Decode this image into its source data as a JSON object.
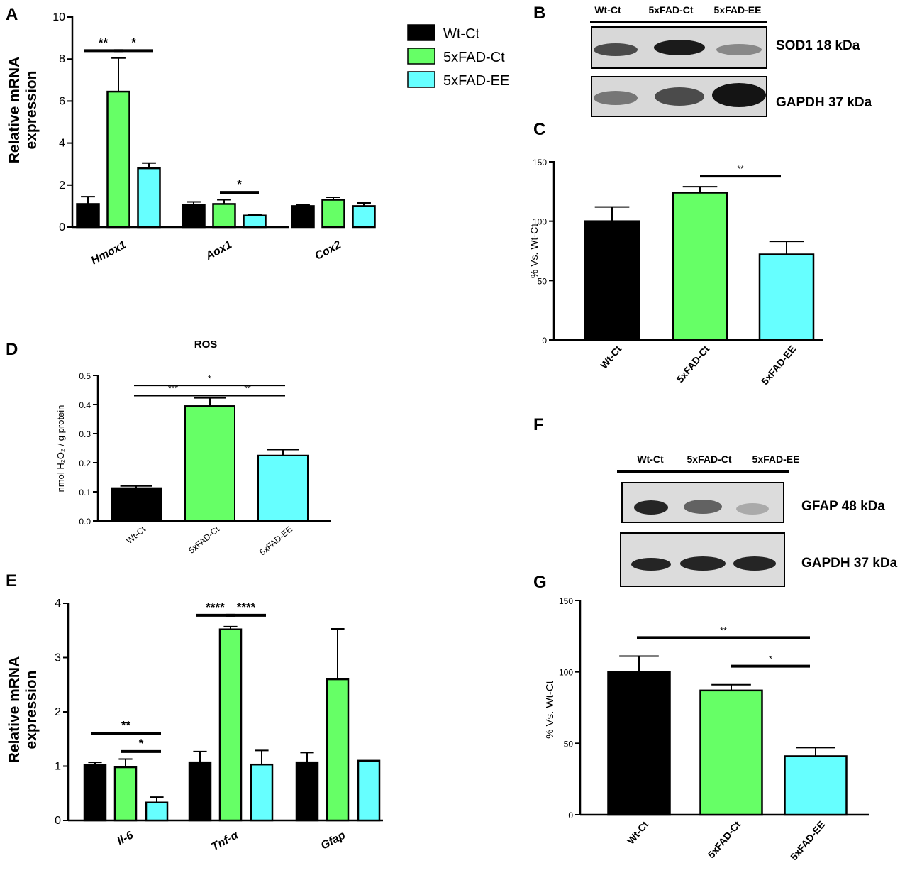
{
  "panels": {
    "A": "A",
    "B": "B",
    "C": "C",
    "D": "D",
    "E": "E",
    "F": "F",
    "G": "G"
  },
  "colors": {
    "wt_ct": "#000000",
    "fad_ct": "#66ff66",
    "fad_ee": "#66ffff"
  },
  "legend": {
    "items": [
      {
        "label": "Wt-Ct",
        "color": "#000000"
      },
      {
        "label": "5xFAD-Ct",
        "color": "#66ff66"
      },
      {
        "label": "5xFAD-EE",
        "color": "#66ffff"
      }
    ]
  },
  "blots": [
    {
      "lanes": [
        "Wt-Ct",
        "5xFAD-Ct",
        "5xFAD-EE"
      ],
      "rows": [
        "SOD1 18 kDa",
        "GAPDH 37 kDa"
      ]
    },
    {
      "lanes": [
        "Wt-Ct",
        "5xFAD-Ct",
        "5xFAD-EE"
      ],
      "rows": [
        "GFAP 48 kDa",
        "GAPDH 37 kDa"
      ]
    }
  ],
  "chart_data": [
    {
      "panel": "A",
      "type": "bar",
      "title": "",
      "ylabel": [
        "Relative mRNA",
        "expression"
      ],
      "ylim": [
        0,
        10
      ],
      "yticks": [
        0,
        2,
        4,
        6,
        8,
        10
      ],
      "categories": [
        "Hmox1",
        "Aox1",
        "Cox2"
      ],
      "series": [
        {
          "name": "Wt-Ct",
          "color": "#000000",
          "values": [
            1.1,
            1.05,
            1.0
          ],
          "errors": [
            0.35,
            0.15,
            0.05
          ]
        },
        {
          "name": "5xFAD-Ct",
          "color": "#66ff66",
          "values": [
            6.45,
            1.1,
            1.3
          ],
          "errors": [
            1.6,
            0.2,
            0.12
          ]
        },
        {
          "name": "5xFAD-EE",
          "color": "#66ffff",
          "values": [
            2.8,
            0.55,
            1.0
          ],
          "errors": [
            0.25,
            0.05,
            0.15
          ]
        }
      ],
      "significance": [
        {
          "cat": 0,
          "from": 0,
          "to": 1,
          "label": "**",
          "y": 8.4
        },
        {
          "cat": 0,
          "from": 1,
          "to": 2,
          "label": "*",
          "y": 8.4
        },
        {
          "cat": 1,
          "from": 1,
          "to": 2,
          "label": "*",
          "y": 1.65
        }
      ]
    },
    {
      "panel": "C",
      "type": "bar",
      "title": "",
      "ylabel": [
        "% Vs. Wt-Ct"
      ],
      "ylim": [
        0,
        150
      ],
      "yticks": [
        0,
        50,
        100,
        150
      ],
      "categories": [
        "Wt-Ct",
        "5xFAD-Ct",
        "5xFAD-EE"
      ],
      "values": [
        100,
        124,
        72
      ],
      "errors": [
        12,
        5,
        11
      ],
      "colors": [
        "#000000",
        "#66ff66",
        "#66ffff"
      ],
      "significance": [
        {
          "from": 1,
          "to": 2,
          "label": "**",
          "y": 138
        }
      ]
    },
    {
      "panel": "D",
      "type": "bar",
      "title": "ROS",
      "ylabel": [
        "nmol H₂O₂ / g protein"
      ],
      "ylim": [
        0,
        0.5
      ],
      "yticks": [
        0.0,
        0.1,
        0.2,
        0.3,
        0.4,
        0.5
      ],
      "categories": [
        "Wt-Ct",
        "5xFAD-Ct",
        "5xFAD-EE"
      ],
      "values": [
        0.113,
        0.395,
        0.225
      ],
      "errors": [
        0.007,
        0.028,
        0.02
      ],
      "colors": [
        "#000000",
        "#66ff66",
        "#66ffff"
      ],
      "significance": [
        {
          "from": 0,
          "to": 2,
          "label": "*",
          "y": 0.465
        },
        {
          "from": 0,
          "to": 1,
          "label": "***",
          "y": 0.43
        },
        {
          "from": 1,
          "to": 2,
          "label": "**",
          "y": 0.43
        }
      ]
    },
    {
      "panel": "E",
      "type": "bar",
      "title": "",
      "ylabel": [
        "Relative mRNA",
        "expression"
      ],
      "ylim": [
        0,
        4
      ],
      "yticks": [
        0,
        1,
        2,
        3,
        4
      ],
      "categories": [
        "Il-6",
        "Tnf-α",
        "Gfap"
      ],
      "series": [
        {
          "name": "Wt-Ct",
          "color": "#000000",
          "values": [
            1.02,
            1.07,
            1.07
          ],
          "errors": [
            0.05,
            0.2,
            0.18
          ]
        },
        {
          "name": "5xFAD-Ct",
          "color": "#66ff66",
          "values": [
            0.98,
            3.52,
            2.6
          ],
          "errors": [
            0.15,
            0.05,
            0.93
          ]
        },
        {
          "name": "5xFAD-EE",
          "color": "#66ffff",
          "values": [
            0.33,
            1.03,
            1.1
          ],
          "errors": [
            0.1,
            0.26,
            0
          ]
        }
      ],
      "significance": [
        {
          "cat": 0,
          "from": 0,
          "to": 2,
          "label": "**",
          "y": 1.6
        },
        {
          "cat": 0,
          "from": 1,
          "to": 2,
          "label": "*",
          "y": 1.27
        },
        {
          "cat": 1,
          "from": 0,
          "to": 1,
          "label": "****",
          "y": 3.78
        },
        {
          "cat": 1,
          "from": 1,
          "to": 2,
          "label": "****",
          "y": 3.78
        }
      ]
    },
    {
      "panel": "G",
      "type": "bar",
      "title": "",
      "ylabel": [
        "% Vs. Wt-Ct"
      ],
      "ylim": [
        0,
        150
      ],
      "yticks": [
        0,
        50,
        100,
        150
      ],
      "categories": [
        "Wt-Ct",
        "5xFAD-Ct",
        "5xFAD-EE"
      ],
      "values": [
        100,
        87,
        41
      ],
      "errors": [
        11,
        4,
        6
      ],
      "colors": [
        "#000000",
        "#66ff66",
        "#66ffff"
      ],
      "significance": [
        {
          "from": 0,
          "to": 2,
          "label": "**",
          "y": 124
        },
        {
          "from": 1,
          "to": 2,
          "label": "*",
          "y": 104
        }
      ]
    }
  ]
}
